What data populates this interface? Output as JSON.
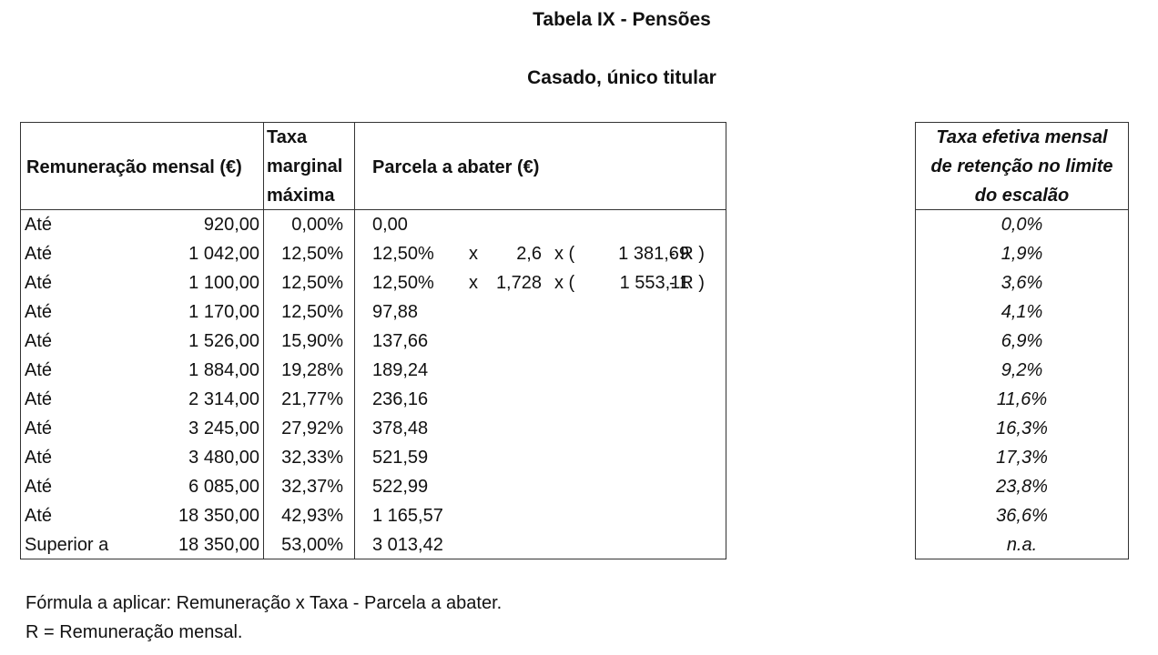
{
  "title": "Tabela IX - Pensões",
  "subtitle": "Casado, único titular",
  "headers": {
    "remuneracao": "Remuneração mensal (€)",
    "taxa": [
      "Taxa",
      "marginal",
      "máxima"
    ],
    "parcela": "Parcela a abater (€)",
    "efetiva": [
      "Taxa efetiva mensal",
      "de retenção no limite",
      "do escalão"
    ]
  },
  "rows": [
    {
      "label": "Até",
      "value": "920,00",
      "rate": "0,00%",
      "parcela": "0,00",
      "formula": null,
      "efetiva": "0,0%"
    },
    {
      "label": "Até",
      "value": "1 042,00",
      "rate": "12,50%",
      "parcela": "12,50%",
      "formula": {
        "x1": "x",
        "factor": "2,6",
        "x2": "x (",
        "base": "1 381,69",
        "minus": "- R )"
      },
      "efetiva": "1,9%"
    },
    {
      "label": "Até",
      "value": "1 100,00",
      "rate": "12,50%",
      "parcela": "12,50%",
      "formula": {
        "x1": "x",
        "factor": "1,728",
        "x2": "x (",
        "base": "1 553,11",
        "minus": "- R )"
      },
      "efetiva": "3,6%"
    },
    {
      "label": "Até",
      "value": "1 170,00",
      "rate": "12,50%",
      "parcela": "97,88",
      "formula": null,
      "efetiva": "4,1%"
    },
    {
      "label": "Até",
      "value": "1 526,00",
      "rate": "15,90%",
      "parcela": "137,66",
      "formula": null,
      "efetiva": "6,9%"
    },
    {
      "label": "Até",
      "value": "1 884,00",
      "rate": "19,28%",
      "parcela": "189,24",
      "formula": null,
      "efetiva": "9,2%"
    },
    {
      "label": "Até",
      "value": "2 314,00",
      "rate": "21,77%",
      "parcela": "236,16",
      "formula": null,
      "efetiva": "11,6%"
    },
    {
      "label": "Até",
      "value": "3 245,00",
      "rate": "27,92%",
      "parcela": "378,48",
      "formula": null,
      "efetiva": "16,3%"
    },
    {
      "label": "Até",
      "value": "3 480,00",
      "rate": "32,33%",
      "parcela": "521,59",
      "formula": null,
      "efetiva": "17,3%"
    },
    {
      "label": "Até",
      "value": "6 085,00",
      "rate": "32,37%",
      "parcela": "522,99",
      "formula": null,
      "efetiva": "23,8%"
    },
    {
      "label": "Até",
      "value": "18 350,00",
      "rate": "42,93%",
      "parcela": "1 165,57",
      "formula": null,
      "efetiva": "36,6%"
    },
    {
      "label": "Superior a",
      "value": "18 350,00",
      "rate": "53,00%",
      "parcela": "3 013,42",
      "formula": null,
      "efetiva": "n.a."
    }
  ],
  "footer": [
    "Fórmula a aplicar: Remuneração x Taxa - Parcela a abater.",
    "R = Remuneração mensal."
  ]
}
